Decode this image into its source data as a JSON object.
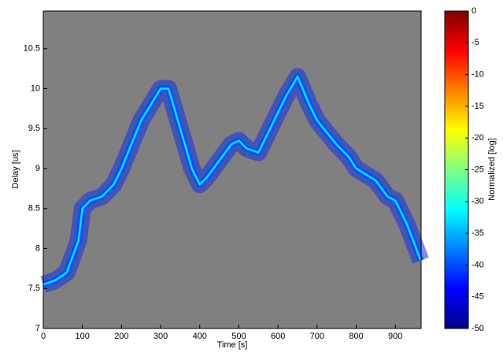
{
  "chart_data": {
    "type": "spectrogram",
    "xlabel": "Time [s]",
    "ylabel": "Delay [us]",
    "x": [
      0,
      30,
      60,
      90,
      100,
      120,
      150,
      180,
      200,
      250,
      300,
      320,
      350,
      380,
      400,
      420,
      450,
      480,
      500,
      520,
      550,
      580,
      620,
      650,
      680,
      700,
      750,
      780,
      800,
      850,
      880,
      900,
      930,
      965
    ],
    "values": [
      7.55,
      7.6,
      7.7,
      8.1,
      8.5,
      8.6,
      8.65,
      8.8,
      9.0,
      9.6,
      10.0,
      10.0,
      9.5,
      9.0,
      8.8,
      8.9,
      9.1,
      9.3,
      9.35,
      9.25,
      9.2,
      9.5,
      9.9,
      10.15,
      9.8,
      9.6,
      9.3,
      9.15,
      9.0,
      8.85,
      8.65,
      8.6,
      8.3,
      7.85
    ],
    "color": "#00e5ff",
    "background": "#808080",
    "xlim": [
      0,
      966
    ],
    "xticks": [
      0,
      100,
      200,
      300,
      400,
      500,
      600,
      700,
      800,
      900
    ],
    "ylim": [
      7,
      10.97
    ],
    "yticks": [
      7,
      7.5,
      8,
      8.5,
      9,
      9.5,
      10,
      10.5
    ],
    "colorbar": {
      "label": "Normalized [log]",
      "clim": [
        -50,
        0
      ],
      "ticks": [
        0,
        -5,
        -10,
        -15,
        -20,
        -25,
        -30,
        -35,
        -40,
        -45,
        -50
      ]
    }
  }
}
